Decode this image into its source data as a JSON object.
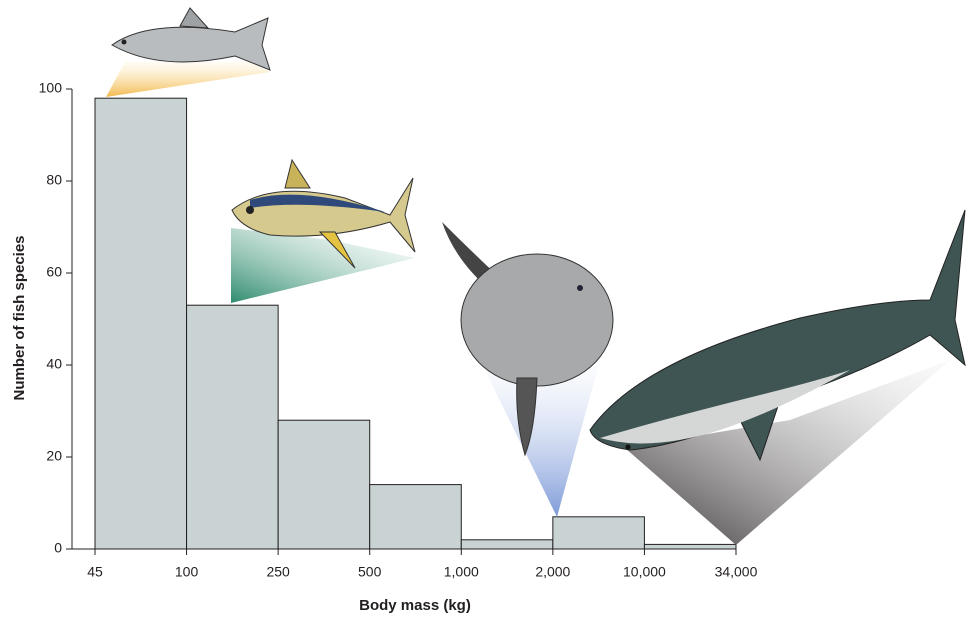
{
  "chart_data": {
    "type": "histogram",
    "bins": [
      45,
      100,
      250,
      500,
      1000,
      2000,
      10000,
      34000
    ],
    "values": [
      98,
      53,
      28,
      14,
      2,
      7,
      1
    ],
    "color": "#c9d3d3",
    "xlabel": "Body mass (kg)",
    "ylabel": "Number of fish species",
    "xticks": [
      45,
      100,
      250,
      500,
      {
        "value": 1000,
        "label": "1,000"
      },
      {
        "value": 2000,
        "label": "2,000"
      },
      {
        "value": 10000,
        "label": "10,000"
      },
      {
        "value": 34000,
        "label": "34,000"
      }
    ],
    "ylim": [
      0,
      100
    ],
    "yticks": [
      0,
      20,
      40,
      60,
      80,
      100
    ]
  }
}
